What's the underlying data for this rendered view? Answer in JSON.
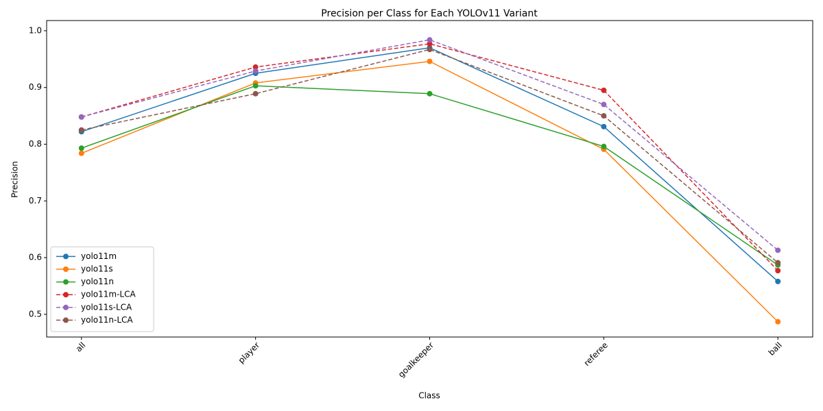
{
  "chart_data": {
    "type": "line",
    "title": "Precision per Class for Each YOLOv11 Variant",
    "x_label": "Class",
    "y_label": "Precision",
    "categories": [
      "all",
      "player",
      "goalkeeper",
      "referee",
      "ball"
    ],
    "series": [
      {
        "name": "yolo11m",
        "color": "#1f77b4",
        "linestyle": "solid",
        "values": [
          0.822,
          0.925,
          0.97,
          0.831,
          0.558
        ]
      },
      {
        "name": "yolo11s",
        "color": "#ff7f0e",
        "linestyle": "solid",
        "values": [
          0.784,
          0.908,
          0.946,
          0.791,
          0.487
        ]
      },
      {
        "name": "yolo11n",
        "color": "#2ca02c",
        "linestyle": "solid",
        "values": [
          0.793,
          0.903,
          0.889,
          0.796,
          0.587
        ]
      },
      {
        "name": "yolo11m-LCA",
        "color": "#d62728",
        "linestyle": "dashed",
        "values": [
          0.848,
          0.936,
          0.977,
          0.895,
          0.577
        ]
      },
      {
        "name": "yolo11s-LCA",
        "color": "#9467bd",
        "linestyle": "dashed",
        "values": [
          0.848,
          0.929,
          0.984,
          0.87,
          0.613
        ]
      },
      {
        "name": "yolo11n-LCA",
        "color": "#8c564b",
        "linestyle": "dashed",
        "values": [
          0.825,
          0.889,
          0.967,
          0.85,
          0.591
        ]
      }
    ],
    "ylim": [
      0.46,
      1.018
    ],
    "yticks": [
      0.5,
      0.6,
      0.7,
      0.8,
      0.9,
      {
        "value": 1,
        "label": "1.0"
      }
    ],
    "legend": "lower left"
  }
}
